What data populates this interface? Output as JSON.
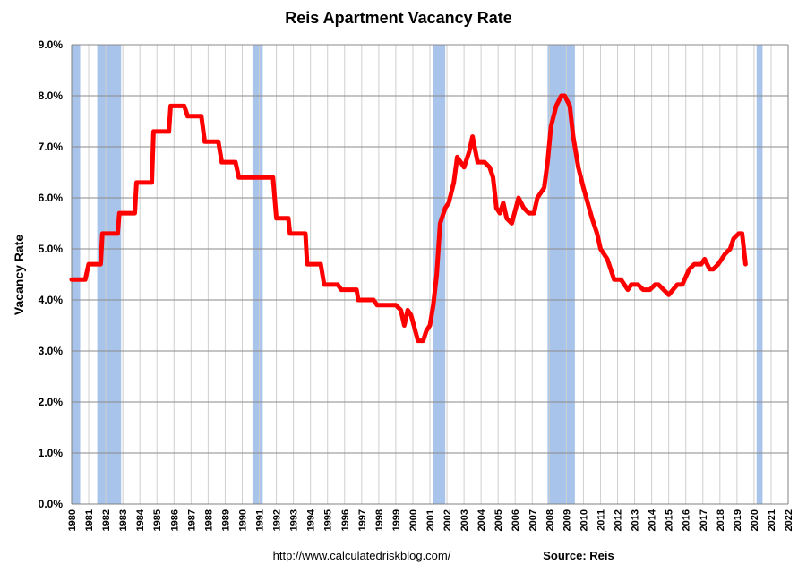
{
  "chart_data": {
    "type": "line",
    "title": "Reis Apartment Vacancy Rate",
    "ylabel": "Vacancy Rate",
    "xlabel": "",
    "ylim": [
      0,
      9
    ],
    "xlim": [
      1980,
      2022
    ],
    "y_ticks": [
      "0.0%",
      "1.0%",
      "2.0%",
      "3.0%",
      "4.0%",
      "5.0%",
      "6.0%",
      "7.0%",
      "8.0%",
      "9.0%"
    ],
    "x_ticks": [
      "1980",
      "1981",
      "1982",
      "1983",
      "1984",
      "1985",
      "1986",
      "1987",
      "1988",
      "1989",
      "1990",
      "1991",
      "1992",
      "1993",
      "1994",
      "1995",
      "1996",
      "1997",
      "1998",
      "1999",
      "2000",
      "2001",
      "2002",
      "2003",
      "2004",
      "2005",
      "2006",
      "2007",
      "2008",
      "2009",
      "2010",
      "2011",
      "2012",
      "2013",
      "2014",
      "2015",
      "2016",
      "2017",
      "2018",
      "2019",
      "2020",
      "2021",
      "2022"
    ],
    "grid": true,
    "line_color": "#ff0000",
    "recession_color": "#a9c4ea",
    "recessions": [
      [
        1980.0,
        1980.5
      ],
      [
        1981.5,
        1982.9
      ],
      [
        1990.6,
        1991.2
      ],
      [
        2001.2,
        2001.9
      ],
      [
        2007.9,
        2009.5
      ],
      [
        2020.15,
        2020.5
      ]
    ],
    "series": [
      {
        "values": [
          [
            1980.0,
            4.4
          ],
          [
            1980.8,
            4.4
          ],
          [
            1981.0,
            4.7
          ],
          [
            1981.7,
            4.7
          ],
          [
            1981.8,
            5.3
          ],
          [
            1982.7,
            5.3
          ],
          [
            1982.8,
            5.7
          ],
          [
            1983.7,
            5.7
          ],
          [
            1983.8,
            6.3
          ],
          [
            1984.7,
            6.3
          ],
          [
            1984.8,
            7.3
          ],
          [
            1985.7,
            7.3
          ],
          [
            1985.8,
            7.8
          ],
          [
            1986.6,
            7.8
          ],
          [
            1986.8,
            7.6
          ],
          [
            1987.6,
            7.6
          ],
          [
            1987.8,
            7.1
          ],
          [
            1988.6,
            7.1
          ],
          [
            1988.8,
            6.7
          ],
          [
            1989.6,
            6.7
          ],
          [
            1989.8,
            6.4
          ],
          [
            1990.5,
            6.4
          ],
          [
            1990.6,
            6.4
          ],
          [
            1991.8,
            6.4
          ],
          [
            1992.0,
            5.6
          ],
          [
            1992.7,
            5.6
          ],
          [
            1992.8,
            5.3
          ],
          [
            1993.7,
            5.3
          ],
          [
            1993.8,
            4.7
          ],
          [
            1994.6,
            4.7
          ],
          [
            1994.8,
            4.3
          ],
          [
            1995.6,
            4.3
          ],
          [
            1995.8,
            4.2
          ],
          [
            1996.7,
            4.2
          ],
          [
            1996.8,
            4.0
          ],
          [
            1997.7,
            4.0
          ],
          [
            1997.9,
            3.9
          ],
          [
            1999.0,
            3.9
          ],
          [
            1999.3,
            3.8
          ],
          [
            1999.5,
            3.5
          ],
          [
            1999.7,
            3.8
          ],
          [
            1999.9,
            3.7
          ],
          [
            2000.3,
            3.2
          ],
          [
            2000.6,
            3.2
          ],
          [
            2000.8,
            3.4
          ],
          [
            2001.0,
            3.5
          ],
          [
            2001.2,
            3.9
          ],
          [
            2001.4,
            4.5
          ],
          [
            2001.6,
            5.5
          ],
          [
            2001.9,
            5.8
          ],
          [
            2002.1,
            5.9
          ],
          [
            2002.4,
            6.3
          ],
          [
            2002.6,
            6.8
          ],
          [
            2003.0,
            6.6
          ],
          [
            2003.3,
            6.9
          ],
          [
            2003.5,
            7.2
          ],
          [
            2003.8,
            6.7
          ],
          [
            2004.2,
            6.7
          ],
          [
            2004.5,
            6.6
          ],
          [
            2004.7,
            6.4
          ],
          [
            2004.9,
            5.8
          ],
          [
            2005.1,
            5.7
          ],
          [
            2005.3,
            5.9
          ],
          [
            2005.5,
            5.6
          ],
          [
            2005.8,
            5.5
          ],
          [
            2006.2,
            6.0
          ],
          [
            2006.5,
            5.8
          ],
          [
            2006.8,
            5.7
          ],
          [
            2007.1,
            5.7
          ],
          [
            2007.3,
            6.0
          ],
          [
            2007.7,
            6.2
          ],
          [
            2007.9,
            6.7
          ],
          [
            2008.1,
            7.4
          ],
          [
            2008.4,
            7.8
          ],
          [
            2008.7,
            8.0
          ],
          [
            2008.9,
            8.0
          ],
          [
            2009.2,
            7.8
          ],
          [
            2009.4,
            7.2
          ],
          [
            2009.7,
            6.6
          ],
          [
            2010.0,
            6.2
          ],
          [
            2010.5,
            5.6
          ],
          [
            2010.8,
            5.3
          ],
          [
            2011.0,
            5.0
          ],
          [
            2011.4,
            4.8
          ],
          [
            2011.8,
            4.4
          ],
          [
            2012.2,
            4.4
          ],
          [
            2012.6,
            4.2
          ],
          [
            2012.8,
            4.3
          ],
          [
            2013.2,
            4.3
          ],
          [
            2013.5,
            4.2
          ],
          [
            2013.9,
            4.2
          ],
          [
            2014.2,
            4.3
          ],
          [
            2014.4,
            4.3
          ],
          [
            2014.7,
            4.2
          ],
          [
            2015.0,
            4.1
          ],
          [
            2015.5,
            4.3
          ],
          [
            2015.8,
            4.3
          ],
          [
            2016.2,
            4.6
          ],
          [
            2016.5,
            4.7
          ],
          [
            2016.9,
            4.7
          ],
          [
            2017.1,
            4.8
          ],
          [
            2017.4,
            4.6
          ],
          [
            2017.6,
            4.6
          ],
          [
            2017.9,
            4.7
          ],
          [
            2018.3,
            4.9
          ],
          [
            2018.6,
            5.0
          ],
          [
            2018.8,
            5.2
          ],
          [
            2019.1,
            5.3
          ],
          [
            2019.3,
            5.3
          ],
          [
            2019.4,
            5.0
          ],
          [
            2019.5,
            4.7
          ]
        ]
      }
    ]
  },
  "footer": {
    "url": "http://www.calculatedriskblog.com/",
    "source": "Source: Reis"
  }
}
